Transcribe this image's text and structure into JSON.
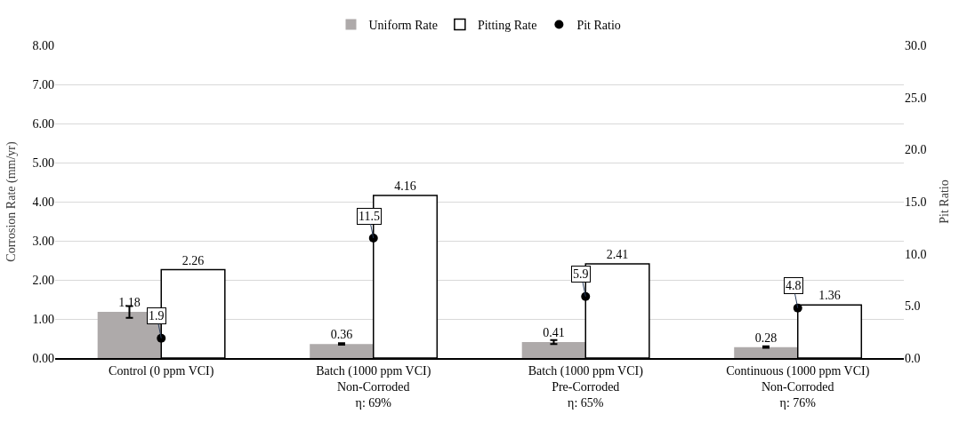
{
  "chart_data": {
    "type": "bar",
    "ylabel": "Corrosion Rate (mm/yr)",
    "y2label": "Pit Ratio",
    "categories": [
      "Control (0 ppm VCI)",
      "Batch (1000 ppm VCI)\nNon-Corroded\nη: 69%",
      "Batch (1000 ppm VCI)\nPre-Corroded\nη: 65%",
      "Continuous (1000 ppm VCI)\nNon-Corroded\nη: 76%"
    ],
    "series": [
      {
        "name": "Uniform Rate",
        "color": "#aeaaaa",
        "values": [
          1.18,
          0.36,
          0.41,
          0.28
        ],
        "errors": [
          0.15,
          0.02,
          0.05,
          0.02
        ],
        "value_labels": [
          "1.18",
          "0.36",
          "0.41",
          "0.28"
        ]
      },
      {
        "name": "Pitting Rate",
        "color": "#ffffff",
        "values": [
          2.26,
          4.16,
          2.41,
          1.36
        ],
        "value_labels": [
          "2.26",
          "4.16",
          "2.41",
          "1.36"
        ]
      },
      {
        "name": "Pit Ratio",
        "type": "scatter",
        "axis": "y2",
        "color": "#000000",
        "marker": "circle",
        "values": [
          1.9,
          11.5,
          5.9,
          4.8
        ],
        "value_labels": [
          "1.9",
          "11.5",
          "5.9",
          "4.8"
        ]
      }
    ],
    "ylim": [
      0,
      8
    ],
    "yticks": [
      {
        "value": 0,
        "label": "0.00"
      },
      {
        "value": 1,
        "label": "1.00"
      },
      {
        "value": 2,
        "label": "2.00"
      },
      {
        "value": 3,
        "label": "3.00"
      },
      {
        "value": 4,
        "label": "4.00"
      },
      {
        "value": 5,
        "label": "5.00"
      },
      {
        "value": 6,
        "label": "6.00"
      },
      {
        "value": 7,
        "label": "7.00"
      },
      {
        "value": 8,
        "label": "8.00"
      }
    ],
    "y2lim": [
      0,
      30
    ],
    "y2ticks": [
      {
        "value": 0,
        "label": "0.0"
      },
      {
        "value": 5,
        "label": "5.0"
      },
      {
        "value": 10,
        "label": "10.0"
      },
      {
        "value": 15,
        "label": "15.0"
      },
      {
        "value": 20,
        "label": "20.0"
      },
      {
        "value": 25,
        "label": "25.0"
      },
      {
        "value": 30,
        "label": "30.0"
      }
    ],
    "grid": "y",
    "legend": "top"
  }
}
